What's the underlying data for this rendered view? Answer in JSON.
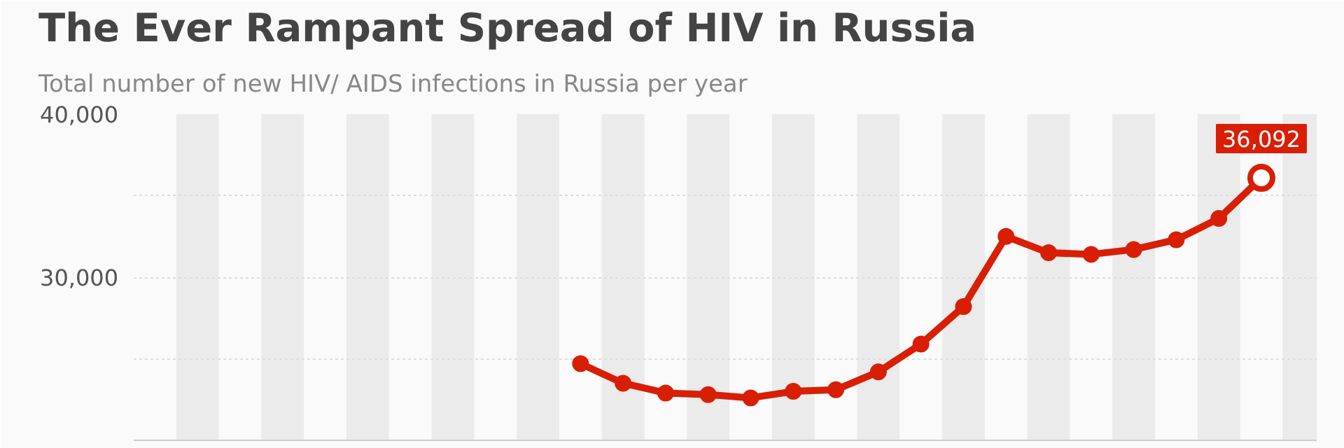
{
  "chart_data": {
    "type": "line",
    "title": "The Ever Rampant Spread of HIV in Russia",
    "subtitle": "Total number of new HIV/ AIDS infections in Russia per year",
    "categories": [
      null,
      null,
      null,
      null,
      null,
      null,
      null,
      null,
      null,
      null,
      null,
      null,
      null,
      null,
      null,
      null,
      null,
      null,
      null,
      null,
      null,
      null,
      null,
      null,
      null,
      null,
      null
    ],
    "series": [
      {
        "color": "#d81f06",
        "values": [
          null,
          null,
          null,
          null,
          null,
          null,
          null,
          null,
          null,
          null,
          24700,
          23500,
          22900,
          22800,
          22600,
          23000,
          23100,
          24200,
          25900,
          28200,
          32500,
          31500,
          31400,
          31700,
          32300,
          33600,
          36092
        ],
        "value_labels": [
          null,
          null,
          null,
          null,
          null,
          null,
          null,
          null,
          null,
          null,
          null,
          null,
          null,
          null,
          null,
          null,
          null,
          null,
          null,
          null,
          null,
          null,
          null,
          null,
          null,
          null,
          "36,092"
        ]
      }
    ],
    "ylim": [
      20000,
      40000
    ],
    "yticks": [
      {
        "value": 25000,
        "label": null
      },
      {
        "value": 30000,
        "label": "30,000"
      },
      {
        "value": 35000,
        "label": null
      },
      {
        "value": 40000,
        "label": "40,000"
      }
    ],
    "grid": "y",
    "marker": "circle",
    "line_style": "solid",
    "tick_labels": "y"
  }
}
